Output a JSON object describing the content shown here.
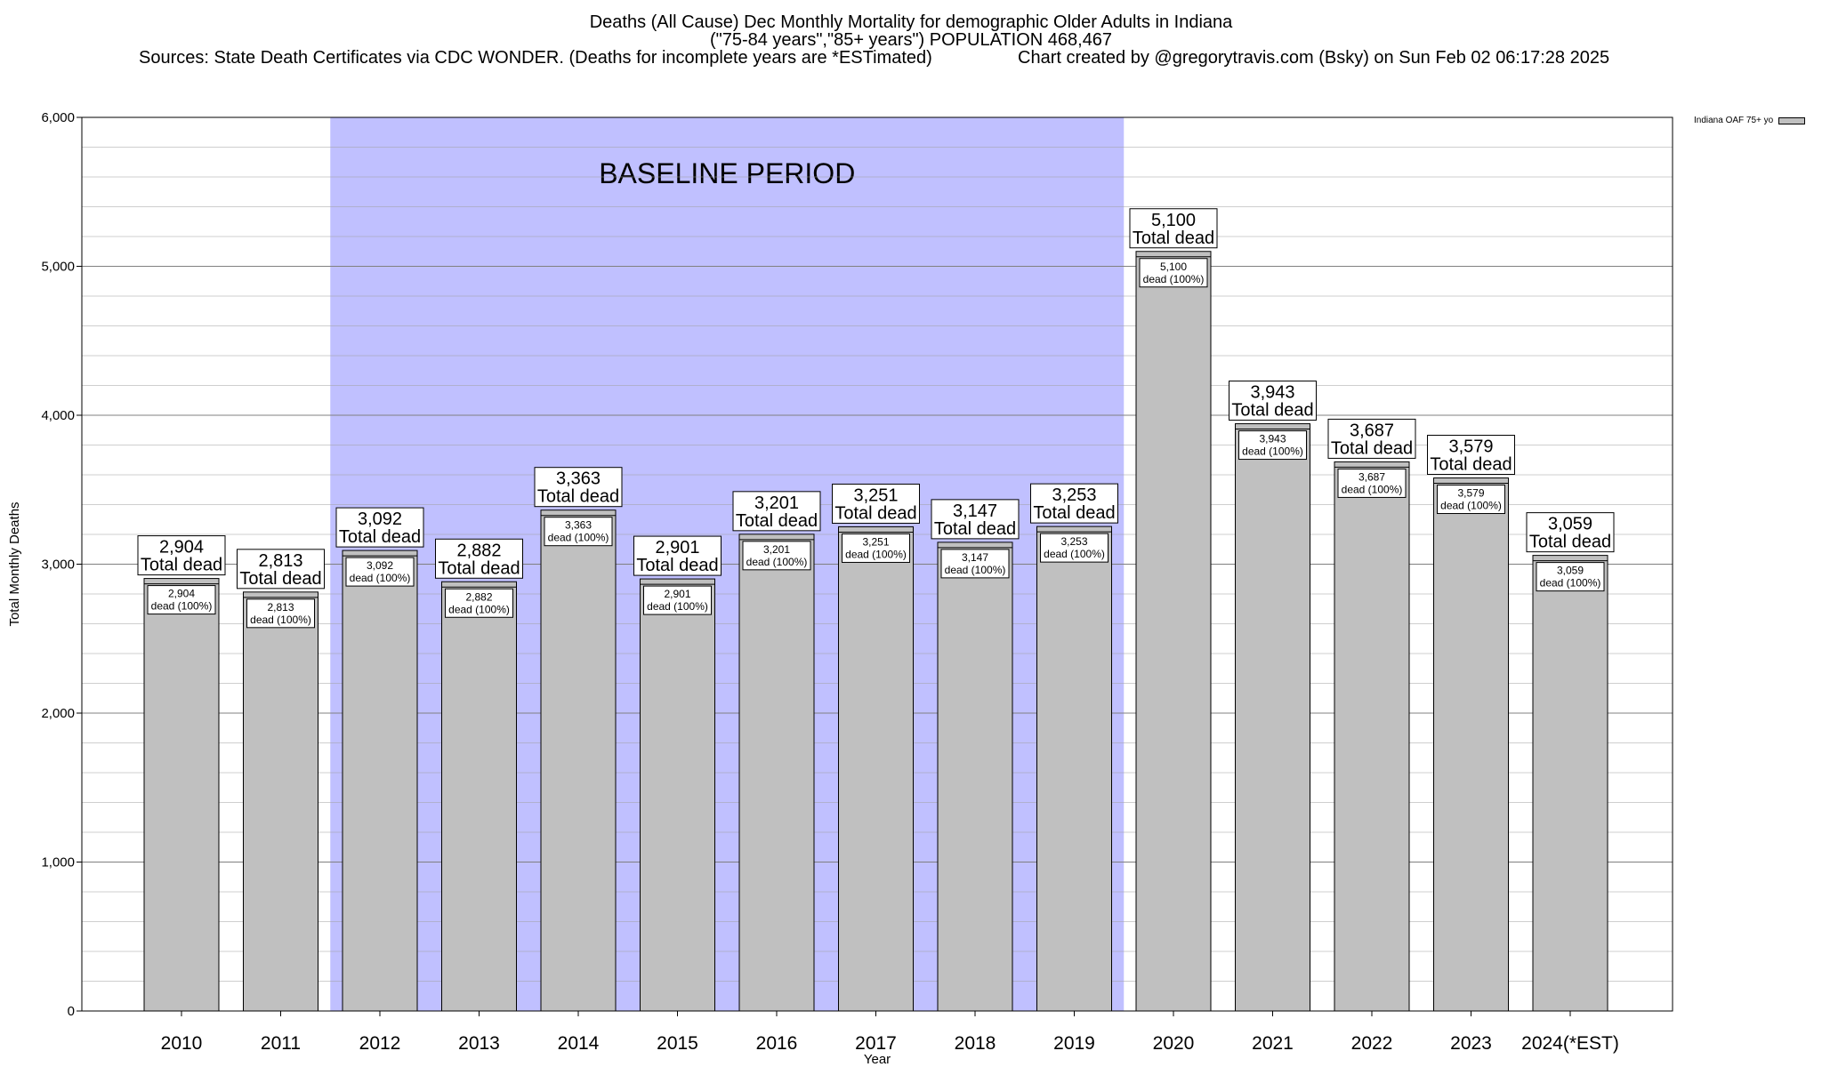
{
  "title": {
    "line1": "Deaths (All Cause) Dec Monthly Mortality for demographic Older Adults in Indiana",
    "line2": "(\"75-84 years\",\"85+ years\") POPULATION 468,467",
    "sources": "Sources: State Death Certificates via CDC WONDER. (Deaths for incomplete years are *ESTimated)",
    "credit": "Chart created by @gregorytravis.com (Bsky) on Sun Feb 02 06:17:28 2025"
  },
  "legend": {
    "label": "Indiana OAF 75+ yo"
  },
  "colors": {
    "bar": "#c0c0c0",
    "baseline": "#c0c0ff",
    "grid": "#a0a0a0"
  },
  "chart_data": {
    "type": "bar",
    "xlabel": "Year",
    "ylabel": "Total Monthly Deaths",
    "ylim": [
      0,
      6000
    ],
    "yticks": [
      0,
      1000,
      2000,
      3000,
      4000,
      5000,
      6000
    ],
    "ytick_labels": [
      "0",
      "1,000",
      "2,000",
      "3,000",
      "4,000",
      "5,000",
      "6,000"
    ],
    "grid": true,
    "legend_position": "top-right",
    "categories": [
      "2010",
      "2011",
      "2012",
      "2013",
      "2014",
      "2015",
      "2016",
      "2017",
      "2018",
      "2019",
      "2020",
      "2021",
      "2022",
      "2023",
      "2024(*EST)"
    ],
    "series": [
      {
        "name": "Indiana OAF 75+ yo",
        "values": [
          2904,
          2813,
          3092,
          2882,
          3363,
          2901,
          3201,
          3251,
          3147,
          3253,
          5100,
          3943,
          3687,
          3579,
          3059
        ],
        "value_labels": [
          "2,904",
          "2,813",
          "3,092",
          "2,882",
          "3,363",
          "2,901",
          "3,201",
          "3,251",
          "3,147",
          "3,253",
          "5,100",
          "3,943",
          "3,687",
          "3,579",
          "3,059"
        ]
      }
    ],
    "total_label_suffix": "Total dead",
    "inner_label_suffix": "dead (100%)",
    "baseline": {
      "label": "BASELINE PERIOD",
      "start": "2012",
      "end": "2019"
    }
  }
}
